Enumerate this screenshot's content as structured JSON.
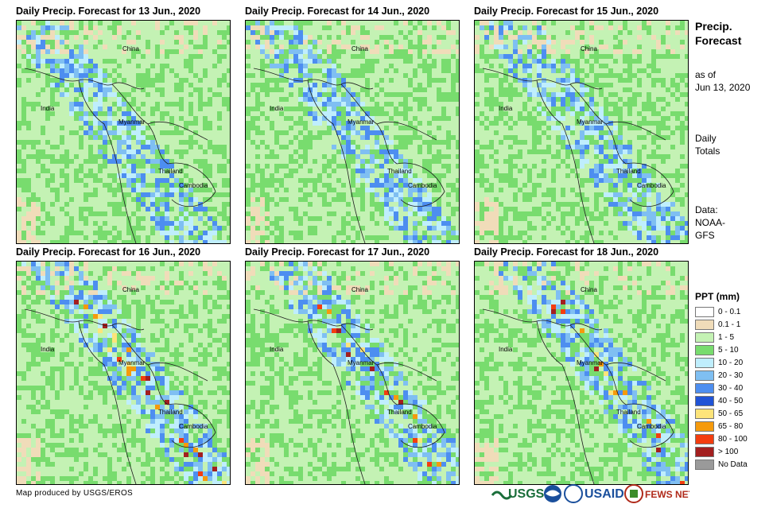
{
  "panels": [
    {
      "title": "Daily Precip. Forecast for 13 Jun., 2020"
    },
    {
      "title": "Daily Precip. Forecast for 14 Jun., 2020"
    },
    {
      "title": "Daily Precip. Forecast for 15 Jun., 2020"
    },
    {
      "title": "Daily Precip. Forecast for 16 Jun., 2020"
    },
    {
      "title": "Daily Precip. Forecast for 17 Jun., 2020"
    },
    {
      "title": "Daily Precip. Forecast for 18 Jun., 2020"
    }
  ],
  "map_labels": {
    "china": "China",
    "india": "India",
    "myanmar": "Myanmar",
    "thailand": "Thailand",
    "cambodia": "Cambodia"
  },
  "side": {
    "title_line1": "Precip.",
    "title_line2": "Forecast",
    "asof_line1": "as of",
    "asof_line2": "Jun 13, 2020",
    "period_line1": "Daily",
    "period_line2": "Totals",
    "data_line1": "Data:",
    "data_line2": "NOAA-",
    "data_line3": "GFS"
  },
  "legend": {
    "title": "PPT (mm)",
    "items": [
      {
        "label": "0 - 0.1",
        "color": "#ffffff"
      },
      {
        "label": "0.1 - 1",
        "color": "#f0dcb9"
      },
      {
        "label": "1 - 5",
        "color": "#c4f2b4"
      },
      {
        "label": "5 - 10",
        "color": "#78dc6e"
      },
      {
        "label": "10 - 20",
        "color": "#bfeefd"
      },
      {
        "label": "20 - 30",
        "color": "#7fbff2"
      },
      {
        "label": "30 - 40",
        "color": "#4d8ef0"
      },
      {
        "label": "40 - 50",
        "color": "#2053d6"
      },
      {
        "label": "50 - 65",
        "color": "#fde47a"
      },
      {
        "label": "65 - 80",
        "color": "#f59a0c"
      },
      {
        "label": "80 - 100",
        "color": "#f33d0f"
      },
      {
        "label": "> 100",
        "color": "#a31f1f"
      },
      {
        "label": "No Data",
        "color": "#9a9a9a"
      }
    ]
  },
  "credit": "Map produced by USGS/EROS",
  "logos": {
    "usgs": "USGS",
    "usaid": "USAID",
    "fewsnet": "FEWS NET"
  }
}
